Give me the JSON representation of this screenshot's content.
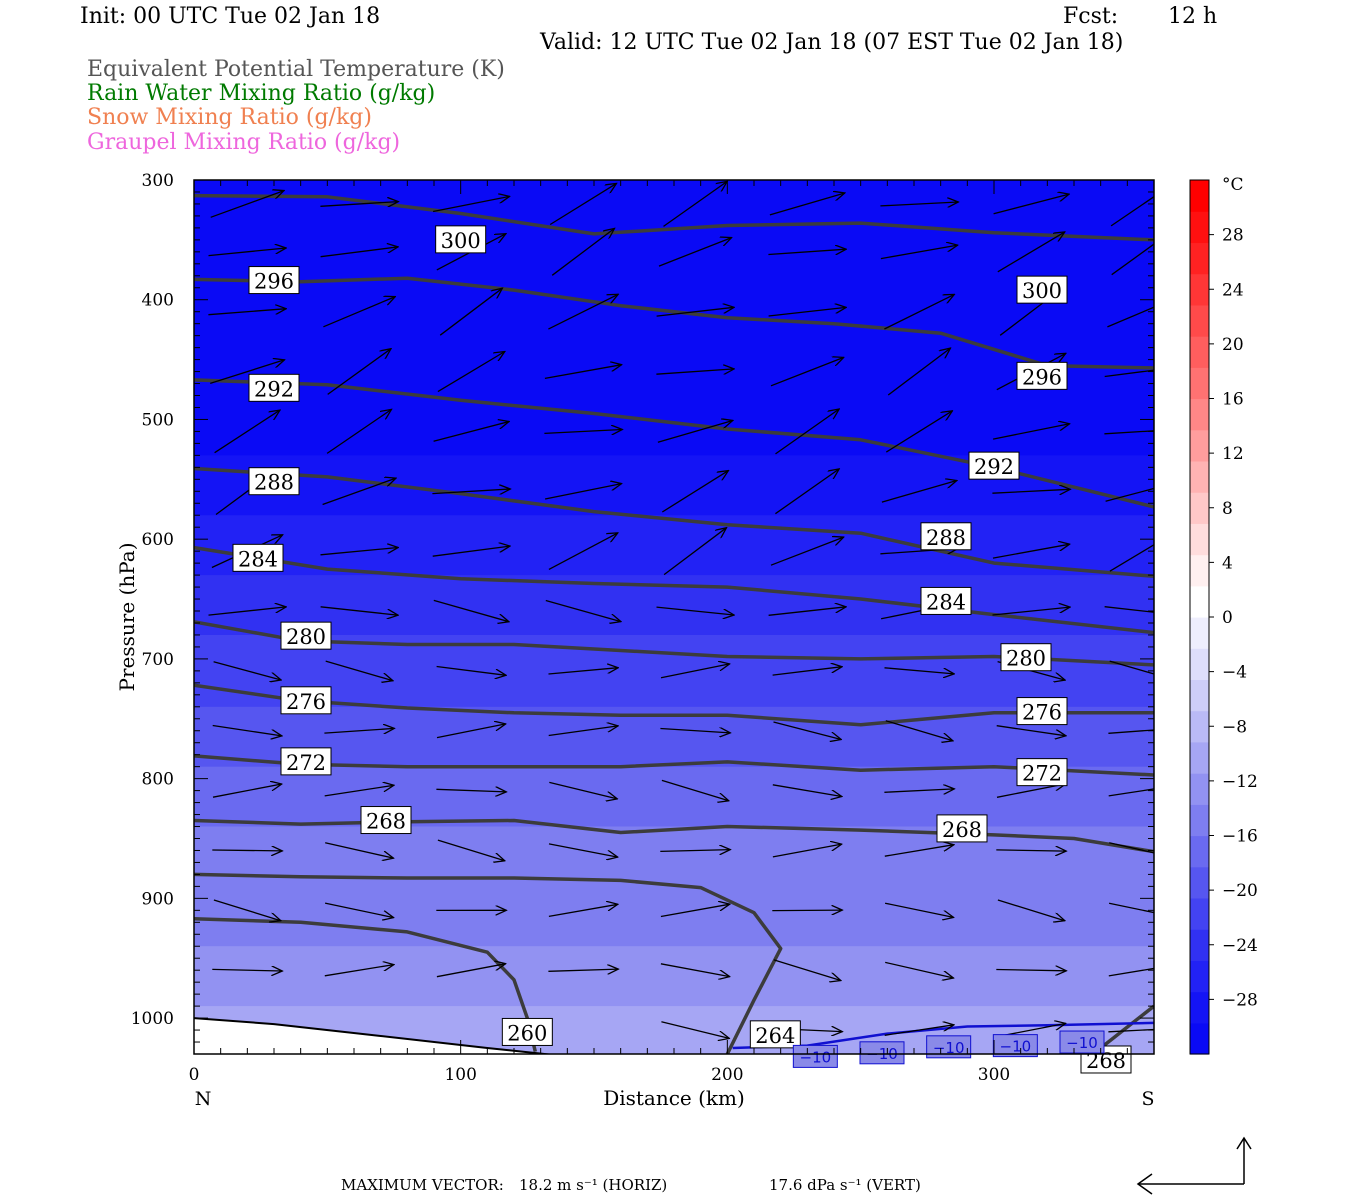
{
  "header": {
    "init": "Init: 00 UTC Tue 02 Jan 18",
    "fcst_label": "Fcst:",
    "fcst_value": "12 h",
    "valid": "Valid: 12 UTC Tue 02 Jan 18 (07 EST Tue 02 Jan 18)"
  },
  "fields": [
    {
      "label": "Equivalent Potential Temperature (K)",
      "color": "#555555"
    },
    {
      "label": "Rain Water Mixing Ratio (g/kg)",
      "color": "#007a00"
    },
    {
      "label": "Snow Mixing Ratio (g/kg)",
      "color": "#f08050"
    },
    {
      "label": "Graupel Mixing Ratio (g/kg)",
      "color": "#ee66dd"
    }
  ],
  "footer": {
    "label": "MAXIMUM VECTOR:",
    "horiz": "18.2 m s⁻¹ (HORIZ)",
    "vert": "17.6 dPa s⁻¹ (VERT)"
  },
  "chart_data": {
    "type": "cross-section",
    "xlabel": "Distance (km)",
    "ylabel": "Pressure (hPa)",
    "x_ticks": [
      0,
      100,
      200,
      300
    ],
    "y_ticks": [
      300,
      400,
      500,
      600,
      700,
      800,
      900,
      1000
    ],
    "xlim": [
      0,
      360
    ],
    "ylim": [
      1030,
      300
    ],
    "left_end": "N",
    "right_end": "S",
    "colorbar": {
      "unit": "°C",
      "ticks": [
        28,
        24,
        20,
        16,
        12,
        8,
        4,
        0,
        -4,
        -8,
        -12,
        -16,
        -20,
        -24,
        -28
      ],
      "range": [
        -32,
        32
      ],
      "colors": [
        "#0a0af5",
        "#1414f5",
        "#2222f5",
        "#3131f2",
        "#4343f2",
        "#5656f0",
        "#6a6af0",
        "#7e7ef0",
        "#9292f2",
        "#a6a6f4",
        "#babaf6",
        "#cdcdf8",
        "#dedefb",
        "#eeeefd",
        "#ffffff",
        "#fff0f0",
        "#ffdddd",
        "#ffc8c8",
        "#ffb3b3",
        "#ff9d9d",
        "#ff8787",
        "#ff7272",
        "#ff5e5e",
        "#ff4a4a",
        "#ff3636",
        "#ff2222",
        "#ff1010",
        "#ff0000"
      ]
    },
    "temperature_bands": [
      {
        "p": 300,
        "t": -32
      },
      {
        "p": 470,
        "t": -30
      },
      {
        "p": 530,
        "t": -28
      },
      {
        "p": 580,
        "t": -26
      },
      {
        "p": 630,
        "t": -24
      },
      {
        "p": 680,
        "t": -22
      },
      {
        "p": 740,
        "t": -20
      },
      {
        "p": 790,
        "t": -18
      },
      {
        "p": 840,
        "t": -16
      },
      {
        "p": 890,
        "t": -14
      },
      {
        "p": 940,
        "t": -12
      },
      {
        "p": 990,
        "t": -10
      }
    ],
    "theta_e_contours": [
      {
        "value": 300,
        "points": [
          [
            0,
            313
          ],
          [
            50,
            314
          ],
          [
            100,
            328
          ],
          [
            150,
            345
          ],
          [
            200,
            338
          ],
          [
            250,
            336
          ],
          [
            300,
            344
          ],
          [
            360,
            350
          ]
        ],
        "labels": [
          [
            100,
            350
          ],
          [
            318,
            392
          ]
        ]
      },
      {
        "value": 296,
        "points": [
          [
            0,
            383
          ],
          [
            40,
            385
          ],
          [
            80,
            382
          ],
          [
            120,
            392
          ],
          [
            160,
            405
          ],
          [
            200,
            415
          ],
          [
            240,
            420
          ],
          [
            280,
            428
          ],
          [
            320,
            455
          ],
          [
            360,
            457
          ]
        ],
        "labels": [
          [
            30,
            384
          ],
          [
            318,
            464
          ]
        ]
      },
      {
        "value": 292,
        "points": [
          [
            0,
            467
          ],
          [
            50,
            471
          ],
          [
            100,
            484
          ],
          [
            150,
            495
          ],
          [
            200,
            508
          ],
          [
            250,
            517
          ],
          [
            300,
            540
          ],
          [
            360,
            573
          ]
        ],
        "labels": [
          [
            30,
            474
          ],
          [
            300,
            539
          ]
        ]
      },
      {
        "value": 288,
        "points": [
          [
            0,
            541
          ],
          [
            50,
            548
          ],
          [
            100,
            562
          ],
          [
            150,
            577
          ],
          [
            200,
            588
          ],
          [
            250,
            595
          ],
          [
            300,
            620
          ],
          [
            360,
            631
          ]
        ],
        "labels": [
          [
            30,
            552
          ],
          [
            282,
            598
          ]
        ]
      },
      {
        "value": 284,
        "points": [
          [
            0,
            607
          ],
          [
            50,
            625
          ],
          [
            100,
            633
          ],
          [
            150,
            637
          ],
          [
            200,
            640
          ],
          [
            250,
            650
          ],
          [
            300,
            663
          ],
          [
            360,
            678
          ]
        ],
        "labels": [
          [
            24,
            616
          ],
          [
            282,
            652
          ]
        ]
      },
      {
        "value": 280,
        "points": [
          [
            0,
            669
          ],
          [
            40,
            685
          ],
          [
            80,
            688
          ],
          [
            120,
            688
          ],
          [
            160,
            693
          ],
          [
            200,
            698
          ],
          [
            250,
            700
          ],
          [
            300,
            698
          ],
          [
            360,
            705
          ]
        ],
        "labels": [
          [
            42,
            681
          ],
          [
            312,
            699
          ]
        ]
      },
      {
        "value": 276,
        "points": [
          [
            0,
            722
          ],
          [
            40,
            735
          ],
          [
            80,
            741
          ],
          [
            120,
            745
          ],
          [
            160,
            747
          ],
          [
            200,
            747
          ],
          [
            250,
            755
          ],
          [
            300,
            745
          ],
          [
            360,
            745
          ]
        ],
        "labels": [
          [
            42,
            735
          ],
          [
            318,
            744
          ]
        ]
      },
      {
        "value": 272,
        "points": [
          [
            0,
            781
          ],
          [
            40,
            788
          ],
          [
            80,
            790
          ],
          [
            120,
            790
          ],
          [
            160,
            790
          ],
          [
            200,
            786
          ],
          [
            250,
            793
          ],
          [
            300,
            790
          ],
          [
            360,
            797
          ]
        ],
        "labels": [
          [
            42,
            786
          ],
          [
            318,
            795
          ]
        ]
      },
      {
        "value": 268,
        "points": [
          [
            0,
            835
          ],
          [
            40,
            838
          ],
          [
            80,
            836
          ],
          [
            120,
            835
          ],
          [
            160,
            845
          ],
          [
            200,
            840
          ],
          [
            250,
            843
          ],
          [
            300,
            847
          ],
          [
            330,
            850
          ],
          [
            360,
            861
          ]
        ],
        "labels": [
          [
            72,
            835
          ],
          [
            288,
            842
          ]
        ]
      },
      {
        "value": 264,
        "points": [
          [
            0,
            880
          ],
          [
            40,
            882
          ],
          [
            80,
            883
          ],
          [
            120,
            883
          ],
          [
            160,
            885
          ],
          [
            190,
            891
          ],
          [
            210,
            912
          ],
          [
            220,
            942
          ],
          [
            210,
            985
          ],
          [
            200,
            1030
          ]
        ],
        "labels": [
          [
            218,
            1014
          ]
        ]
      },
      {
        "value": 260,
        "points": [
          [
            0,
            917
          ],
          [
            40,
            920
          ],
          [
            80,
            928
          ],
          [
            110,
            945
          ],
          [
            120,
            968
          ],
          [
            125,
            1000
          ],
          [
            128,
            1028
          ]
        ],
        "labels": [
          [
            125,
            1012
          ]
        ]
      },
      {
        "value": 268,
        "points": [
          [
            360,
            990
          ],
          [
            340,
            1025
          ]
        ],
        "labels": [
          [
            342,
            1035
          ]
        ]
      }
    ],
    "isotherm": {
      "value": -10,
      "points": [
        [
          202,
          1025
        ],
        [
          230,
          1023
        ],
        [
          260,
          1013
        ],
        [
          290,
          1007
        ],
        [
          320,
          1006
        ],
        [
          360,
          1004
        ]
      ],
      "labels": [
        [
          233,
          1032
        ],
        [
          258,
          1029
        ],
        [
          283,
          1024
        ],
        [
          308,
          1023
        ],
        [
          333,
          1020
        ]
      ]
    },
    "terrain": [
      [
        0,
        1000
      ],
      [
        30,
        1005
      ],
      [
        70,
        1015
      ],
      [
        110,
        1025
      ],
      [
        140,
        1032
      ],
      [
        160,
        1032
      ],
      [
        200,
        1031
      ],
      [
        360,
        1031
      ]
    ]
  }
}
